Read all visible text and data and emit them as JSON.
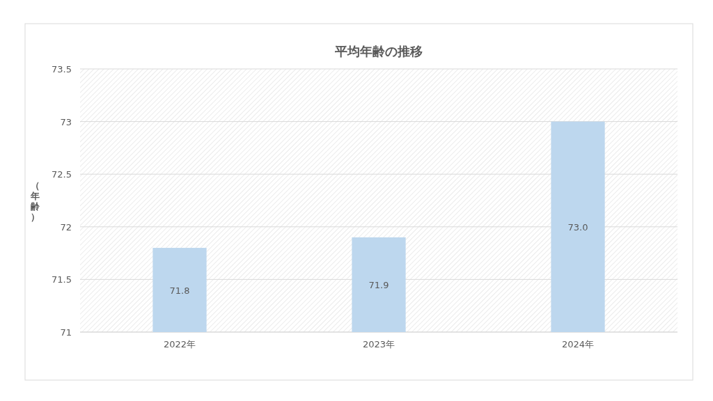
{
  "chart_data": {
    "type": "bar",
    "title": "平均年齢の推移",
    "ylabel": "（年齢）",
    "categories": [
      "2022年",
      "2023年",
      "2024年"
    ],
    "values": [
      71.8,
      71.9,
      73.0
    ],
    "color": "#bdd7ee",
    "value_labels": [
      "71.8",
      "71.9",
      "73.0"
    ],
    "ylim": [
      71,
      73.5
    ],
    "yticks": [
      71,
      {
        "value": 71.5,
        "label": "71.5"
      },
      72,
      {
        "value": 72.5,
        "label": "72.5"
      },
      73,
      {
        "value": 73.5,
        "label": "73.5"
      }
    ],
    "grid": "y"
  }
}
